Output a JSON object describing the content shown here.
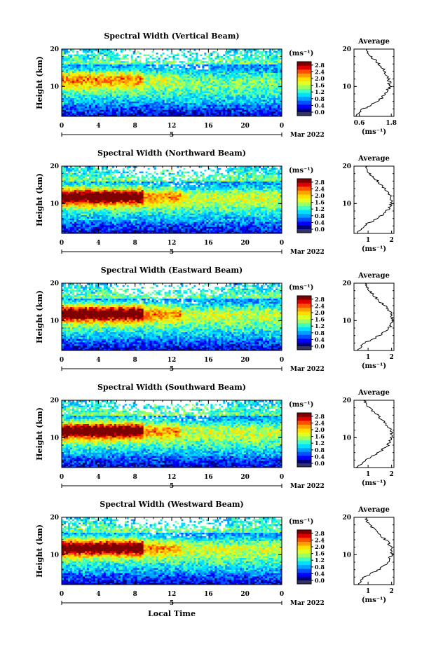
{
  "page": {
    "xaxis_title": "Local Time",
    "date_label": "Mar 2022",
    "day_label": "5"
  },
  "colors": {
    "colormap": [
      "#00007f",
      "#0000ff",
      "#0050ff",
      "#00a0ff",
      "#00e0ff",
      "#40ffbf",
      "#9fff60",
      "#e0ff20",
      "#ffdf00",
      "#ffa000",
      "#ff5000",
      "#e00000",
      "#7f0000"
    ],
    "missing": "#ffffff",
    "below_range": "#333366"
  },
  "chart_data": [
    {
      "type": "heatmap",
      "title": "Spectral Width (Vertical Beam)",
      "xlabel": "",
      "ylabel": "Height (km)",
      "x_ticks": [
        "0",
        "4",
        "8",
        "12",
        "16",
        "20",
        "0"
      ],
      "xlim": [
        0,
        24
      ],
      "y_ticks": [
        "10",
        "20"
      ],
      "ylim": [
        2,
        20
      ],
      "colorbar": {
        "unit": "(ms⁻¹)",
        "ticks": [
          "0.0",
          "0.4",
          "0.8",
          "1.2",
          "1.6",
          "2.0",
          "2.4",
          "2.8"
        ],
        "range": [
          0,
          3.0
        ]
      },
      "profile": {
        "title": "Average",
        "xlabel": "(ms⁻¹)",
        "x_ticks": [
          "0.6",
          "1.8"
        ],
        "xlim": [
          0.4,
          1.9
        ],
        "heights": [
          2,
          4,
          6,
          8,
          10,
          12,
          14,
          16,
          18,
          20
        ],
        "values": [
          0.45,
          0.75,
          1.3,
          1.6,
          1.75,
          1.7,
          1.55,
          1.35,
          1.05,
          0.85
        ]
      }
    },
    {
      "type": "heatmap",
      "title": "Spectral Width (Northward Beam)",
      "xlabel": "",
      "ylabel": "Height (km)",
      "x_ticks": [
        "0",
        "4",
        "8",
        "12",
        "16",
        "20",
        "0"
      ],
      "xlim": [
        0,
        24
      ],
      "y_ticks": [
        "10",
        "20"
      ],
      "ylim": [
        2,
        20
      ],
      "colorbar": {
        "unit": "(ms⁻¹)",
        "ticks": [
          "0.0",
          "0.4",
          "0.8",
          "1.2",
          "1.6",
          "2.0",
          "2.4",
          "2.8"
        ],
        "range": [
          0,
          3.0
        ]
      },
      "profile": {
        "title": "Average",
        "xlabel": "(ms⁻¹)",
        "x_ticks": [
          "1",
          "2"
        ],
        "xlim": [
          0.4,
          2.1
        ],
        "heights": [
          2,
          4,
          6,
          8,
          10,
          12,
          14,
          16,
          18,
          20
        ],
        "values": [
          0.55,
          0.8,
          1.4,
          1.8,
          2.0,
          1.95,
          1.7,
          1.4,
          1.05,
          0.9
        ]
      }
    },
    {
      "type": "heatmap",
      "title": "Spectral Width (Eastward Beam)",
      "xlabel": "",
      "ylabel": "Height (km)",
      "x_ticks": [
        "0",
        "4",
        "8",
        "12",
        "16",
        "20",
        "0"
      ],
      "xlim": [
        0,
        24
      ],
      "y_ticks": [
        "10",
        "20"
      ],
      "ylim": [
        2,
        20
      ],
      "colorbar": {
        "unit": "(ms⁻¹)",
        "ticks": [
          "0.0",
          "0.4",
          "0.8",
          "1.2",
          "1.6",
          "2.0",
          "2.4",
          "2.8"
        ],
        "range": [
          0,
          3.0
        ]
      },
      "profile": {
        "title": "Average",
        "xlabel": "(ms⁻¹)",
        "x_ticks": [
          "1",
          "2"
        ],
        "xlim": [
          0.4,
          2.1
        ],
        "heights": [
          2,
          4,
          6,
          8,
          10,
          12,
          14,
          16,
          18,
          20
        ],
        "values": [
          0.55,
          0.85,
          1.5,
          1.9,
          2.05,
          2.0,
          1.7,
          1.35,
          1.05,
          0.85
        ]
      }
    },
    {
      "type": "heatmap",
      "title": "Spectral Width (Southward Beam)",
      "xlabel": "",
      "ylabel": "Height (km)",
      "x_ticks": [
        "0",
        "4",
        "8",
        "12",
        "16",
        "20",
        "0"
      ],
      "xlim": [
        0,
        24
      ],
      "y_ticks": [
        "10",
        "20"
      ],
      "ylim": [
        2,
        20
      ],
      "colorbar": {
        "unit": "(ms⁻¹)",
        "ticks": [
          "0.0",
          "0.4",
          "0.8",
          "1.2",
          "1.6",
          "2.0",
          "2.4",
          "2.8"
        ],
        "range": [
          0,
          3.0
        ]
      },
      "profile": {
        "title": "Average",
        "xlabel": "(ms⁻¹)",
        "x_ticks": [
          "1",
          "2"
        ],
        "xlim": [
          0.4,
          2.1
        ],
        "heights": [
          2,
          4,
          6,
          8,
          10,
          12,
          14,
          16,
          18,
          20
        ],
        "values": [
          0.55,
          0.85,
          1.45,
          1.85,
          2.0,
          2.0,
          1.7,
          1.4,
          1.05,
          0.85
        ]
      }
    },
    {
      "type": "heatmap",
      "title": "Spectral Width (Westward Beam)",
      "xlabel": "",
      "ylabel": "Height (km)",
      "x_ticks": [
        "0",
        "4",
        "8",
        "12",
        "16",
        "20",
        "0"
      ],
      "xlim": [
        0,
        24
      ],
      "y_ticks": [
        "10",
        "20"
      ],
      "ylim": [
        2,
        20
      ],
      "colorbar": {
        "unit": "(ms⁻¹)",
        "ticks": [
          "0.0",
          "0.4",
          "0.8",
          "1.2",
          "1.6",
          "2.0",
          "2.4",
          "2.8"
        ],
        "range": [
          0,
          3.0
        ]
      },
      "profile": {
        "title": "Average",
        "xlabel": "(ms⁻¹)",
        "x_ticks": [
          "1",
          "2"
        ],
        "xlim": [
          0.4,
          2.1
        ],
        "heights": [
          2,
          4,
          6,
          8,
          10,
          12,
          14,
          16,
          18,
          20
        ],
        "values": [
          0.55,
          0.85,
          1.45,
          1.85,
          2.0,
          2.0,
          1.75,
          1.4,
          1.05,
          0.9
        ]
      }
    }
  ]
}
